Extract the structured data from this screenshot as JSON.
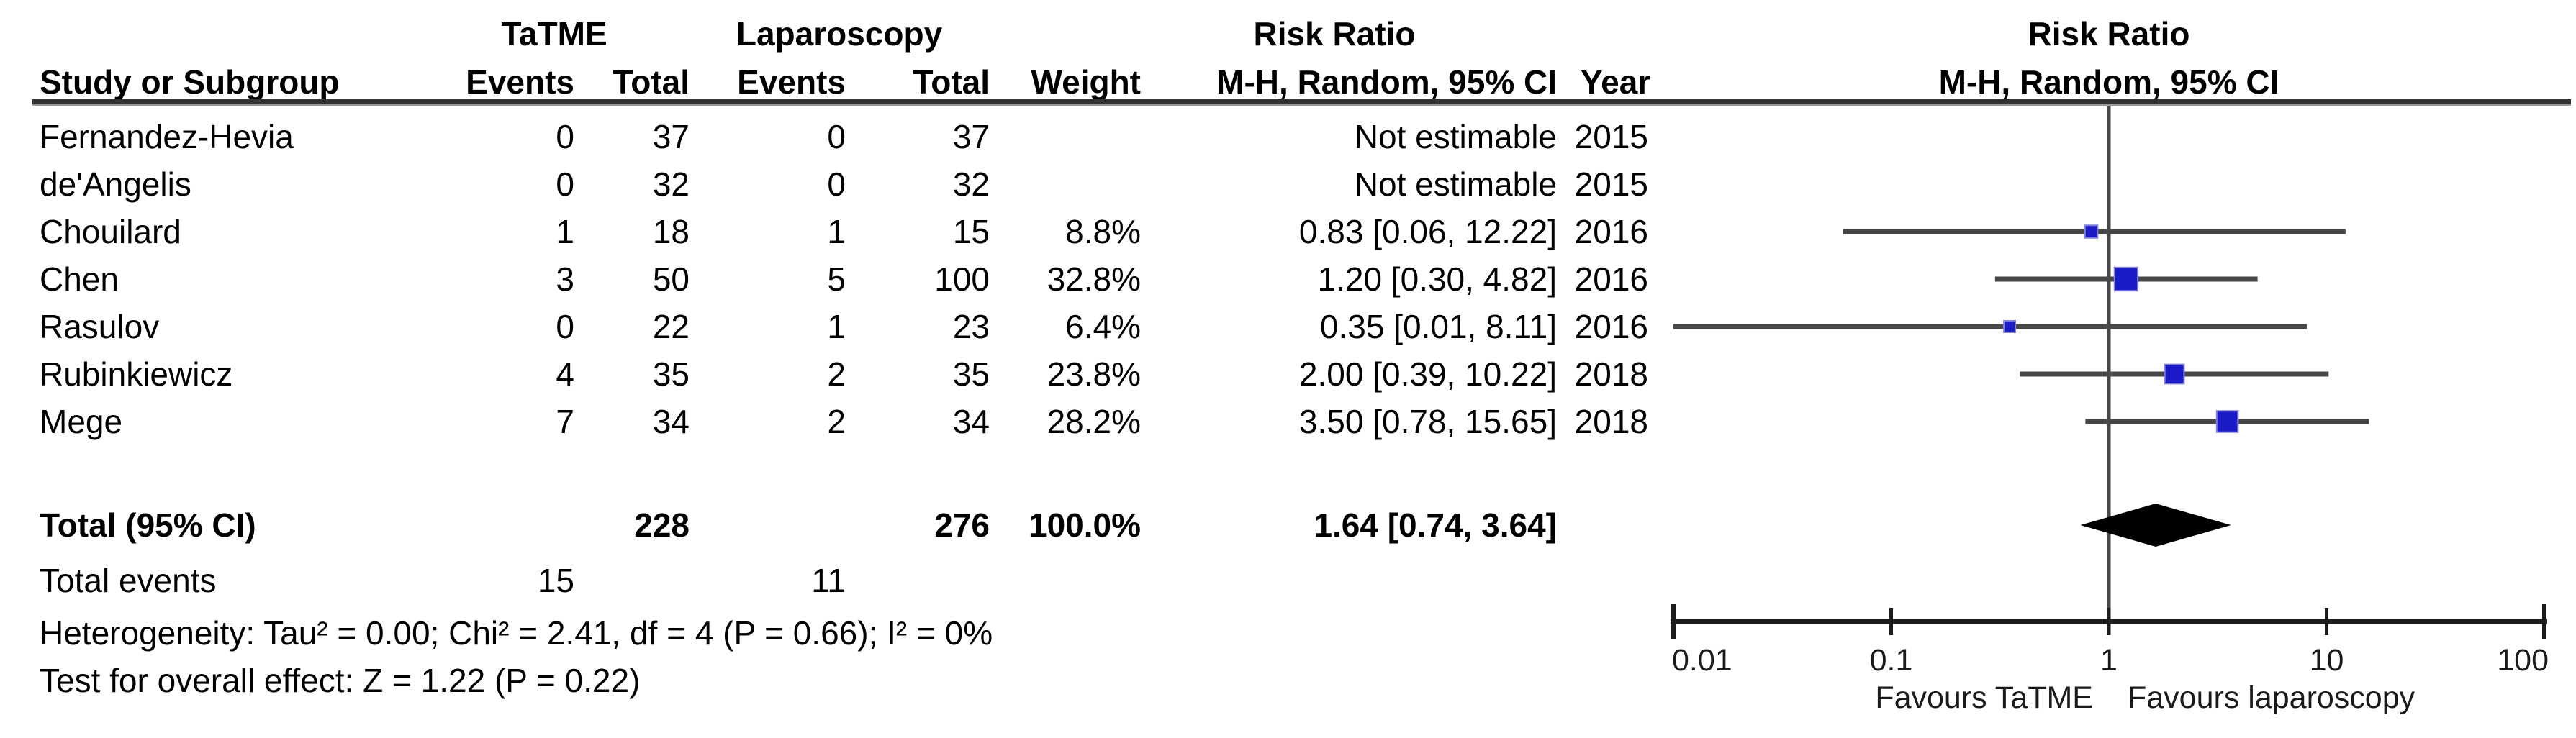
{
  "table_header": {
    "study": "Study or Subgroup",
    "events": "Events",
    "total": "Total",
    "weight": "Weight",
    "rr_method": "M-H, Random, 95% CI",
    "year": "Year",
    "group_experimental": "TaTME",
    "group_control": "Laparoscopy",
    "effect_title": "Risk Ratio"
  },
  "chart_data": {
    "type": "scatter",
    "subtype": "forest-plot",
    "effect_label": "Risk Ratio",
    "method_label": "M-H, Random, 95% CI",
    "x_scale": "log",
    "x_tick_values": [
      0.01,
      0.1,
      1,
      10,
      100
    ],
    "x_tick_labels": [
      "0.01",
      "0.1",
      "1",
      "10",
      "100"
    ],
    "favours_left": "Favours TaTME",
    "favours_right": "Favours laparoscopy",
    "studies": [
      {
        "name": "Fernandez-Hevia",
        "tatme_events": "0",
        "tatme_total": "37",
        "lap_events": "0",
        "lap_total": "37",
        "weight": "",
        "rr_ci": "Not estimable",
        "year": "2015",
        "rr": null,
        "ci_low": null,
        "ci_high": null,
        "weight_pct": 0
      },
      {
        "name": "de'Angelis",
        "tatme_events": "0",
        "tatme_total": "32",
        "lap_events": "0",
        "lap_total": "32",
        "weight": "",
        "rr_ci": "Not estimable",
        "year": "2015",
        "rr": null,
        "ci_low": null,
        "ci_high": null,
        "weight_pct": 0
      },
      {
        "name": "Chouilard",
        "tatme_events": "1",
        "tatme_total": "18",
        "lap_events": "1",
        "lap_total": "15",
        "weight": "8.8%",
        "rr_ci": "0.83 [0.06, 12.22]",
        "year": "2016",
        "rr": 0.83,
        "ci_low": 0.06,
        "ci_high": 12.22,
        "weight_pct": 8.8
      },
      {
        "name": "Chen",
        "tatme_events": "3",
        "tatme_total": "50",
        "lap_events": "5",
        "lap_total": "100",
        "weight": "32.8%",
        "rr_ci": "1.20 [0.30, 4.82]",
        "year": "2016",
        "rr": 1.2,
        "ci_low": 0.3,
        "ci_high": 4.82,
        "weight_pct": 32.8
      },
      {
        "name": "Rasulov",
        "tatme_events": "0",
        "tatme_total": "22",
        "lap_events": "1",
        "lap_total": "23",
        "weight": "6.4%",
        "rr_ci": "0.35 [0.01, 8.11]",
        "year": "2016",
        "rr": 0.35,
        "ci_low": 0.01,
        "ci_high": 8.11,
        "weight_pct": 6.4
      },
      {
        "name": "Rubinkiewicz",
        "tatme_events": "4",
        "tatme_total": "35",
        "lap_events": "2",
        "lap_total": "35",
        "weight": "23.8%",
        "rr_ci": "2.00 [0.39, 10.22]",
        "year": "2018",
        "rr": 2.0,
        "ci_low": 0.39,
        "ci_high": 10.22,
        "weight_pct": 23.8
      },
      {
        "name": "Mege",
        "tatme_events": "7",
        "tatme_total": "34",
        "lap_events": "2",
        "lap_total": "34",
        "weight": "28.2%",
        "rr_ci": "3.50 [0.78, 15.65]",
        "year": "2018",
        "rr": 3.5,
        "ci_low": 0.78,
        "ci_high": 15.65,
        "weight_pct": 28.2
      }
    ],
    "total": {
      "label": "Total (95% CI)",
      "tatme_total": "228",
      "lap_total": "276",
      "weight": "100.0%",
      "rr_ci": "1.64 [0.74, 3.64]",
      "rr": 1.64,
      "ci_low": 0.74,
      "ci_high": 3.64
    },
    "total_events": {
      "label": "Total events",
      "tatme_events": "15",
      "lap_events": "11"
    },
    "heterogeneity": "Heterogeneity: Tau² = 0.00; Chi² = 2.41, df = 4 (P = 0.66); I² = 0%",
    "overall_effect": "Test for overall effect: Z = 1.22 (P = 0.22)"
  },
  "colors": {
    "square": "#1b1bc8",
    "square_edge": "#8080dd",
    "diamond": "#000000",
    "ci_line": "#474747",
    "axis": "#1c1c1c"
  }
}
